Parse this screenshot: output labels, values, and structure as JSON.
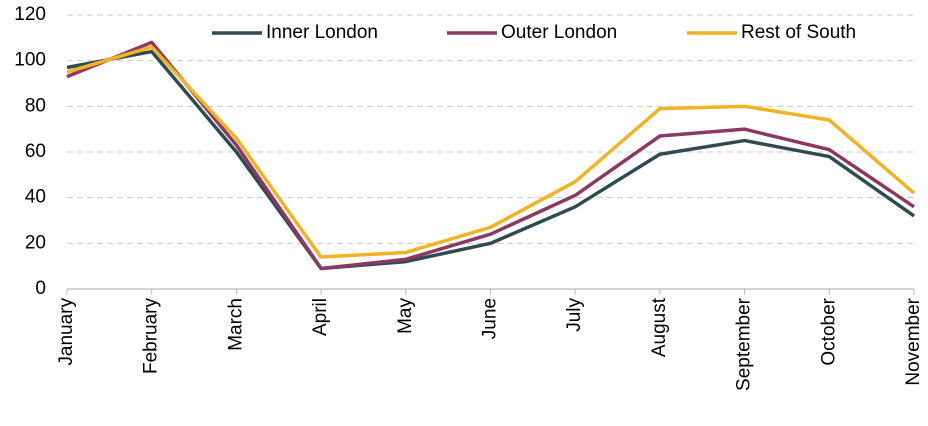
{
  "chart_data": {
    "type": "line",
    "categories": [
      "January",
      "February",
      "March",
      "April",
      "May",
      "June",
      "July",
      "August",
      "September",
      "October",
      "November"
    ],
    "series": [
      {
        "name": "Inner London",
        "color": "#2f4b52",
        "values": [
          97,
          104,
          60,
          9,
          12,
          20,
          36,
          59,
          65,
          58,
          32
        ]
      },
      {
        "name": "Outer London",
        "color": "#8b3863",
        "values": [
          93,
          108,
          63,
          9,
          13,
          24,
          41,
          67,
          70,
          61,
          36
        ]
      },
      {
        "name": "Rest of South",
        "color": "#f0b323",
        "values": [
          95,
          106,
          66,
          14,
          16,
          27,
          47,
          79,
          80,
          74,
          42
        ]
      }
    ],
    "ylim": [
      0,
      120
    ],
    "yticks": [
      0,
      20,
      40,
      60,
      80,
      100,
      120
    ],
    "grid": true,
    "legend": "top"
  }
}
